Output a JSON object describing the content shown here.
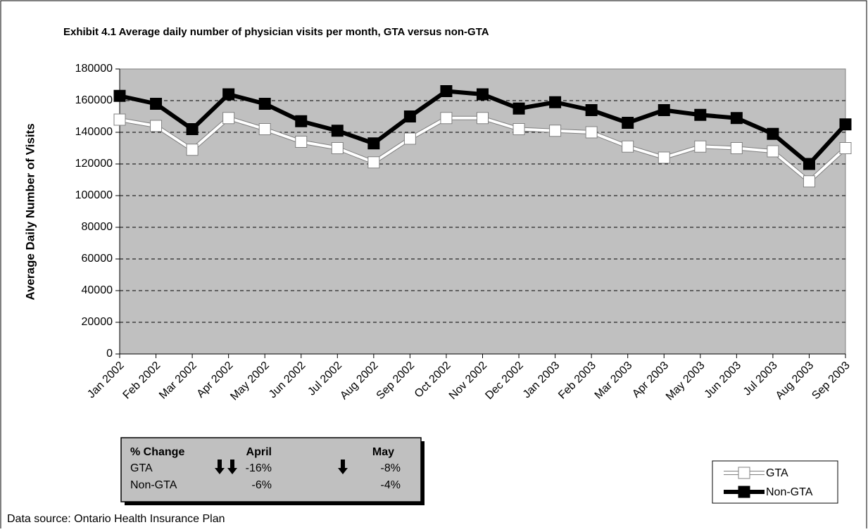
{
  "chart_data": {
    "type": "line",
    "title": "Exhibit 4.1 Average daily number of physician visits per month, GTA versus non-GTA",
    "y_label": "Average Daily Number of Visits",
    "categories": [
      "Jan 2002",
      "Feb 2002",
      "Mar 2002",
      "Apr 2002",
      "May 2002",
      "Jun 2002",
      "Jul 2002",
      "Aug 2002",
      "Sep 2002",
      "Oct 2002",
      "Nov 2002",
      "Dec 2002",
      "Jan 2003",
      "Feb 2003",
      "Mar 2003",
      "Apr 2003",
      "May 2003",
      "Jun 2003",
      "Jul 2003",
      "Aug 2003",
      "Sep 2003"
    ],
    "series": [
      {
        "name": "GTA",
        "color": "#ffffff",
        "values": [
          148000,
          144000,
          129000,
          149000,
          142000,
          134000,
          130000,
          121000,
          136000,
          149000,
          149000,
          142000,
          141000,
          140000,
          131000,
          124000,
          131000,
          130000,
          128000,
          109000,
          130000
        ]
      },
      {
        "name": "Non-GTA",
        "color": "#000000",
        "values": [
          163000,
          158000,
          142000,
          164000,
          158000,
          147000,
          141000,
          133000,
          150000,
          166000,
          164000,
          155000,
          159000,
          154000,
          146000,
          154000,
          151000,
          149000,
          139000,
          120000,
          145000
        ]
      }
    ],
    "ylim": [
      0,
      180000
    ],
    "yticks": [
      0,
      20000,
      40000,
      60000,
      80000,
      100000,
      120000,
      140000,
      160000,
      180000
    ],
    "grid": true,
    "plot_background": "#c0c0c0",
    "legend_position": "lower right",
    "change_table": {
      "headers": [
        "% Change",
        "April",
        "May"
      ],
      "rows": [
        [
          "GTA",
          "-16%",
          "-8%"
        ],
        [
          "Non-GTA",
          "-6%",
          "-4%"
        ]
      ]
    },
    "source": "Data source: Ontario Health Insurance Plan"
  }
}
